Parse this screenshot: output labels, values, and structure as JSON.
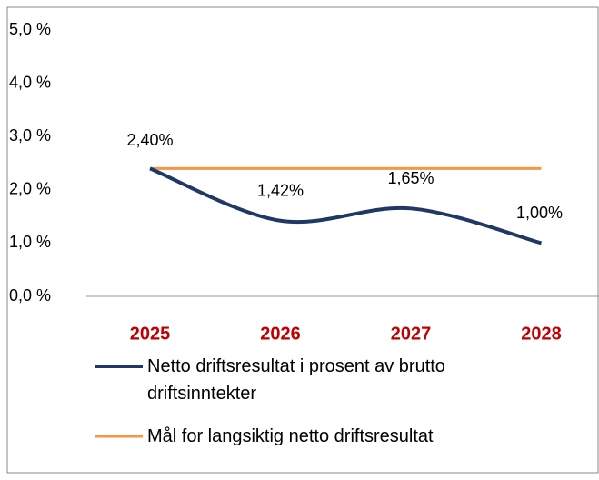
{
  "chart_data": {
    "type": "line",
    "categories": [
      "2025",
      "2026",
      "2027",
      "2028"
    ],
    "series": [
      {
        "name": "Netto driftsresultat i prosent av brutto driftsinntekter",
        "color": "#203864",
        "values": [
          2.4,
          1.42,
          1.65,
          1.0
        ],
        "value_labels": [
          "2,40%",
          "1,42%",
          "1,65%",
          "1,00%"
        ],
        "smooth": true
      },
      {
        "name": "Mål for langsiktig netto driftsresultat",
        "color": "#f79646",
        "values": [
          2.4,
          2.4,
          2.4,
          2.4
        ]
      }
    ],
    "ylim": [
      0,
      5
    ],
    "yticks": [
      {
        "value": 0,
        "label": "0,0 %"
      },
      {
        "value": 1,
        "label": "1,0 %"
      },
      {
        "value": 2,
        "label": "2,0 %"
      },
      {
        "value": 3,
        "label": "3,0 %"
      },
      {
        "value": 4,
        "label": "4,0 %"
      },
      {
        "value": 5,
        "label": "5,0 %"
      }
    ],
    "category_color": "#c00000",
    "grid": false
  }
}
